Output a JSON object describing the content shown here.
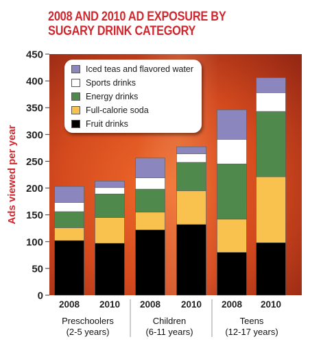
{
  "title_lines": [
    "2008 AND 2010 AD EXPOSURE BY",
    "SUGARY DRINK CATEGORY"
  ],
  "colors": {
    "title": "#d0272e",
    "iced_teas": "#8b86bd",
    "sports": "#ffffff",
    "energy": "#4f8a4c",
    "soda": "#f9c24e",
    "fruit": "#000000"
  },
  "chart_data": {
    "type": "bar",
    "stacked": true,
    "title": "2008 AND 2010 AD EXPOSURE BY SUGARY DRINK CATEGORY",
    "xlabel": "",
    "ylabel": "Ads viewed per year",
    "ylim": [
      0,
      450
    ],
    "yticks": [
      0,
      50,
      100,
      150,
      200,
      250,
      300,
      350,
      400,
      450
    ],
    "categories": [
      "2008",
      "2010",
      "2008",
      "2010",
      "2008",
      "2010"
    ],
    "groups": [
      {
        "label_lines": [
          "Preschoolers",
          "(2-5 years)"
        ],
        "categories": [
          0,
          1
        ]
      },
      {
        "label_lines": [
          "Children",
          "(6-11 years)"
        ],
        "categories": [
          2,
          3
        ]
      },
      {
        "label_lines": [
          "Teens",
          "(12-17 years)"
        ],
        "categories": [
          4,
          5
        ]
      }
    ],
    "legend_placement": "top-left",
    "grid": false,
    "series": [
      {
        "name": "Fruit drinks",
        "color": "#000000",
        "values": [
          102,
          97,
          122,
          132,
          80,
          98
        ]
      },
      {
        "name": "Full-calorie soda",
        "color": "#f9c24e",
        "values": [
          24,
          48,
          33,
          63,
          62,
          123
        ]
      },
      {
        "name": "Energy drinks",
        "color": "#4f8a4c",
        "values": [
          30,
          44,
          43,
          53,
          103,
          122
        ]
      },
      {
        "name": "Sports drinks",
        "color": "#ffffff",
        "values": [
          17,
          12,
          21,
          16,
          46,
          35
        ]
      },
      {
        "name": "Iced teas and flavored water",
        "color": "#8b86bd",
        "values": [
          30,
          12,
          37,
          13,
          55,
          28
        ]
      }
    ],
    "legend_order": [
      4,
      3,
      2,
      1,
      0
    ]
  }
}
